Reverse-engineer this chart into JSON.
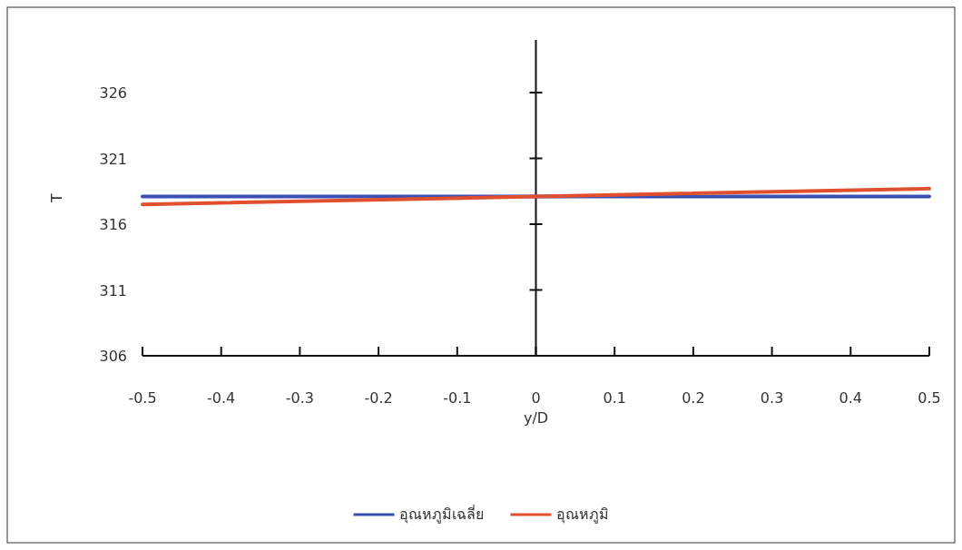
{
  "chart_data": {
    "type": "line",
    "xlabel": "y/D",
    "ylabel": "T",
    "xlim": [
      -0.5,
      0.5
    ],
    "ylim": [
      306,
      330
    ],
    "xticks": [
      -0.5,
      -0.4,
      -0.3,
      -0.2,
      -0.1,
      0,
      0.1,
      0.2,
      0.3,
      0.4,
      0.5
    ],
    "yticks": [
      306,
      311,
      316,
      321,
      326
    ],
    "legend": "bottom",
    "series": [
      {
        "name": "อุณหภูมิเฉลี่ย",
        "color": "#3b4fb5",
        "x": [
          -0.5,
          0,
          0.5
        ],
        "values": [
          318.1,
          318.1,
          318.1
        ]
      },
      {
        "name": "อุณหภูมิ",
        "color": "#e0502e",
        "x": [
          -0.5,
          0,
          0.5
        ],
        "values": [
          317.5,
          318.1,
          318.7
        ]
      }
    ]
  }
}
